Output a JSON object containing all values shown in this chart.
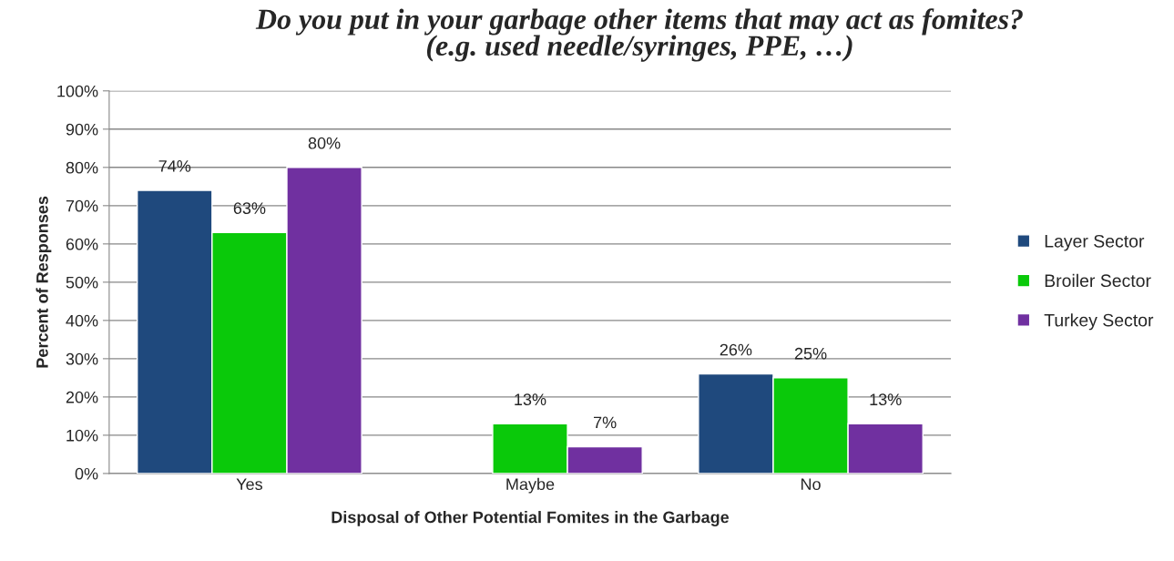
{
  "chart_data": {
    "type": "bar",
    "title": "Do you put in your garbage other items that may act as fomites?\n(e.g. used needle/syringes, PPE, …)",
    "xlabel": "Disposal of Other Potential Fomites in the Garbage",
    "ylabel": "Percent of Responses",
    "categories": [
      "Yes",
      "Maybe",
      "No"
    ],
    "series": [
      {
        "name": "Layer Sector",
        "color": "#1f497d",
        "values": [
          74,
          null,
          26
        ]
      },
      {
        "name": "Broiler Sector",
        "color": "#0ac90a",
        "values": [
          63,
          13,
          25
        ]
      },
      {
        "name": "Turkey Sector",
        "color": "#7030a0",
        "values": [
          80,
          7,
          13
        ]
      }
    ],
    "ylim": [
      0,
      100
    ],
    "yticks": [
      {
        "value": 0,
        "label": "0%"
      },
      {
        "value": 10,
        "label": "10%"
      },
      {
        "value": 20,
        "label": "20%"
      },
      {
        "value": 30,
        "label": "30%"
      },
      {
        "value": 40,
        "label": "40%"
      },
      {
        "value": 50,
        "label": "50%"
      },
      {
        "value": 60,
        "label": "60%"
      },
      {
        "value": 70,
        "label": "70%"
      },
      {
        "value": 80,
        "label": "80%"
      },
      {
        "value": 90,
        "label": "90%"
      },
      {
        "value": 100,
        "label": "100%"
      }
    ],
    "value_labels": [
      [
        "74%",
        null,
        "26%"
      ],
      [
        "63%",
        "13%",
        "25%"
      ],
      [
        "80%",
        "7%",
        "13%"
      ]
    ],
    "grid": "y",
    "legend": "right"
  }
}
